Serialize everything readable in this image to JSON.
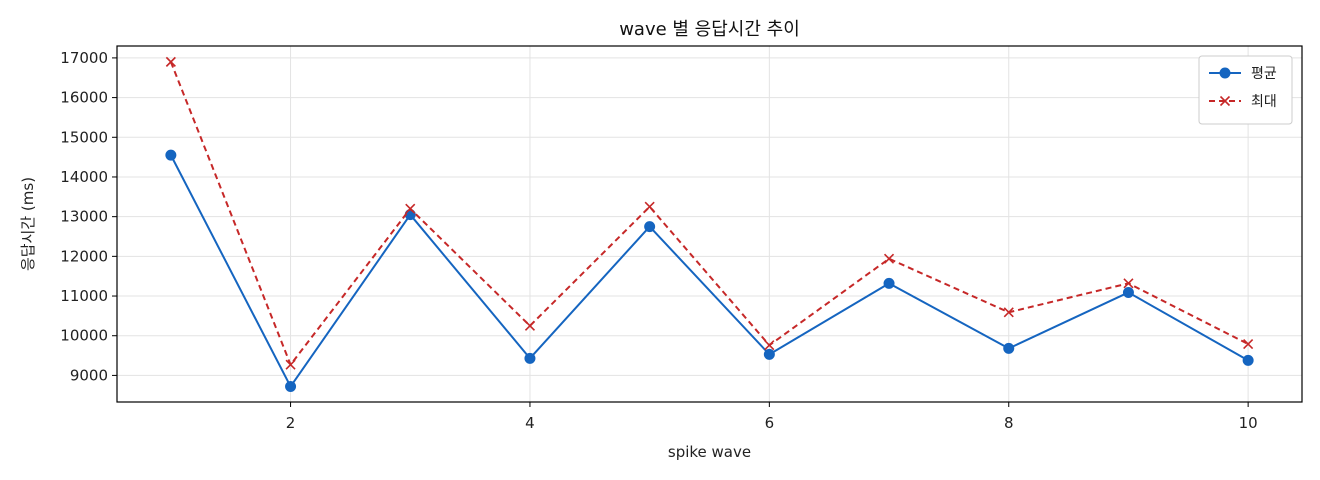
{
  "chart_data": {
    "type": "line",
    "title": "wave 별 응답시간 추이",
    "xlabel": "spike wave",
    "ylabel": "응답시간 (ms)",
    "x": [
      1,
      2,
      3,
      4,
      5,
      6,
      7,
      8,
      9,
      10
    ],
    "xlim": [
      0.55,
      10.45
    ],
    "ylim": [
      8330,
      17300
    ],
    "xticks": [
      2,
      4,
      6,
      8,
      10
    ],
    "yticks": [
      9000,
      10000,
      11000,
      12000,
      13000,
      14000,
      15000,
      16000,
      17000
    ],
    "grid": true,
    "legend_position": "top-right",
    "series": [
      {
        "name": "평균",
        "color": "#1565c0",
        "line_style": "solid",
        "marker": "circle",
        "values": [
          14550,
          8720,
          13050,
          9430,
          12750,
          9530,
          11320,
          9680,
          11090,
          9380
        ]
      },
      {
        "name": "최대",
        "color": "#c62828",
        "line_style": "dashed",
        "marker": "x",
        "values": [
          16900,
          9270,
          13200,
          10250,
          13250,
          9760,
          11940,
          10590,
          11320,
          9790
        ]
      }
    ]
  }
}
